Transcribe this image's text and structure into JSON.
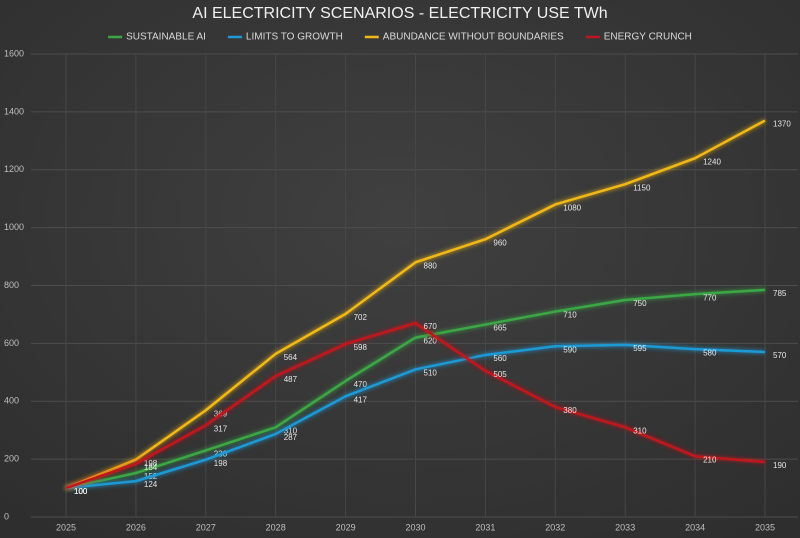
{
  "chart_data": {
    "type": "line",
    "title": "AI ELECTRICITY SCENARIOS - ELECTRICITY USE TWh",
    "categories": [
      "2025",
      "2026",
      "2027",
      "2028",
      "2029",
      "2030",
      "2031",
      "2032",
      "2033",
      "2034",
      "2035"
    ],
    "series": [
      {
        "name": "SUSTAINABLE AI",
        "color": "#3aa845",
        "values": [
          100,
          152,
          230,
          310,
          470,
          620,
          665,
          710,
          750,
          770,
          785
        ]
      },
      {
        "name": "LIMITS TO GROWTH",
        "color": "#1e9ad6",
        "values": [
          100,
          124,
          198,
          287,
          417,
          510,
          560,
          590,
          595,
          580,
          570
        ]
      },
      {
        "name": "ABUNDANCE WITHOUT BOUNDARIES",
        "color": "#f2b817",
        "values": [
          100,
          198,
          369,
          564,
          702,
          880,
          960,
          1080,
          1150,
          1240,
          1370
        ]
      },
      {
        "name": "ENERGY CRUNCH",
        "color": "#c0171e",
        "values": [
          100,
          184,
          317,
          487,
          598,
          670,
          505,
          380,
          310,
          210,
          190
        ]
      }
    ],
    "ylim": [
      0,
      1600
    ],
    "yticks": [
      0,
      200,
      400,
      600,
      800,
      1000,
      1200,
      1400,
      1600
    ],
    "grid": true
  }
}
